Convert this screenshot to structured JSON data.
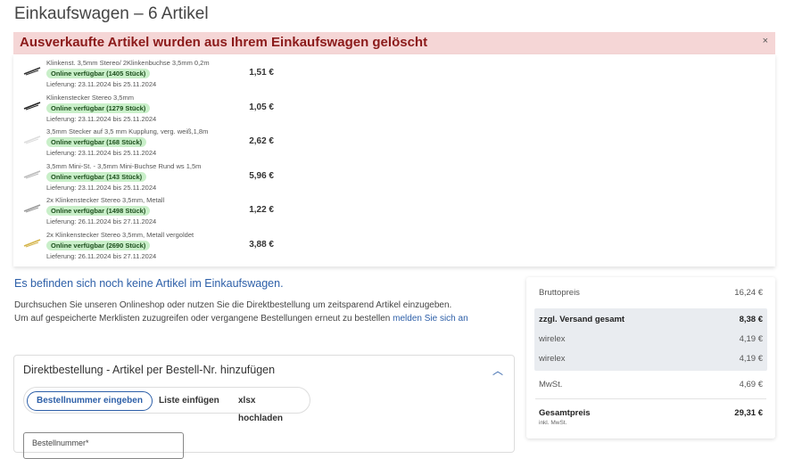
{
  "title": "Einkaufswagen – 6 Artikel",
  "alert": {
    "text": "Ausverkaufte Artikel wurden aus Ihrem Einkaufswagen gelöscht",
    "close": "×"
  },
  "items": [
    {
      "name": "Klinkenst. 3,5mm Stereo/ 2Klinkenbuchse 3,5mm 0,2m",
      "stock": "Online verfügbar (1405 Stück)",
      "delivery": "Lieferung: 23.11.2024 bis 25.11.2024",
      "price": "1,51 €",
      "thumb_color": "#333333"
    },
    {
      "name": "Klinkenstecker Stereo 3,5mm",
      "stock": "Online verfügbar (1279 Stück)",
      "delivery": "Lieferung: 23.11.2024 bis 25.11.2024",
      "price": "1,05 €",
      "thumb_color": "#222222"
    },
    {
      "name": "3,5mm Stecker auf 3,5 mm Kupplung, verg. weiß,1,8m",
      "stock": "Online verfügbar (168 Stück)",
      "delivery": "Lieferung: 23.11.2024 bis 25.11.2024",
      "price": "2,62 €",
      "thumb_color": "#dddddd"
    },
    {
      "name": "3,5mm Mini-St. - 3,5mm Mini-Buchse Rund ws 1,5m",
      "stock": "Online verfügbar (143 Stück)",
      "delivery": "Lieferung: 23.11.2024 bis 25.11.2024",
      "price": "5,96 €",
      "thumb_color": "#bbbbbb"
    },
    {
      "name": "2x Klinkenstecker Stereo 3,5mm, Metall",
      "stock": "Online verfügbar (1498 Stück)",
      "delivery": "Lieferung: 26.11.2024 bis 27.11.2024",
      "price": "1,22 €",
      "thumb_color": "#999999"
    },
    {
      "name": "2x Klinkenstecker Stereo 3,5mm, Metall vergoldet",
      "stock": "Online verfügbar (2690 Stück)",
      "delivery": "Lieferung: 26.11.2024 bis 27.11.2024",
      "price": "3,88 €",
      "thumb_color": "#d4b44a"
    }
  ],
  "empty": "Es befinden sich noch keine Artikel im Einkaufswagen.",
  "info1": "Durchsuchen Sie unseren Onlineshop oder nutzen Sie die Direktbestellung um zeitsparend Artikel einzugeben.",
  "info2": "Um auf gespeicherte Merklisten zuzugreifen oder vergangene Bestellungen erneut zu bestellen ",
  "info2_link": "melden Sie sich an",
  "direct": {
    "title": "Direktbestellung - Artikel per Bestell-Nr. hinzufügen",
    "tabs": [
      "Bestellnummer eingeben",
      "Liste einfügen",
      "xlsx hochladen"
    ],
    "field_label": "Bestellnummer*"
  },
  "summary": {
    "brutto_label": "Bruttopreis",
    "brutto": "16,24 €",
    "ship_label": "zzgl. Versand gesamt",
    "ship": "8,38 €",
    "ship_rows": [
      {
        "label": "wirelex",
        "value": "4,19 €"
      },
      {
        "label": "wirelex",
        "value": "4,19 €"
      }
    ],
    "vat_label": "MwSt.",
    "vat": "4,69 €",
    "total_label": "Gesamtpreis",
    "total": "29,31 €",
    "total_note": "inkl. MwSt."
  },
  "colors": {
    "accent": "#2d5fa8",
    "alert_bg": "#f5d6d6",
    "alert_text": "#8b1a1a",
    "badge_bg": "#c9efc9"
  }
}
